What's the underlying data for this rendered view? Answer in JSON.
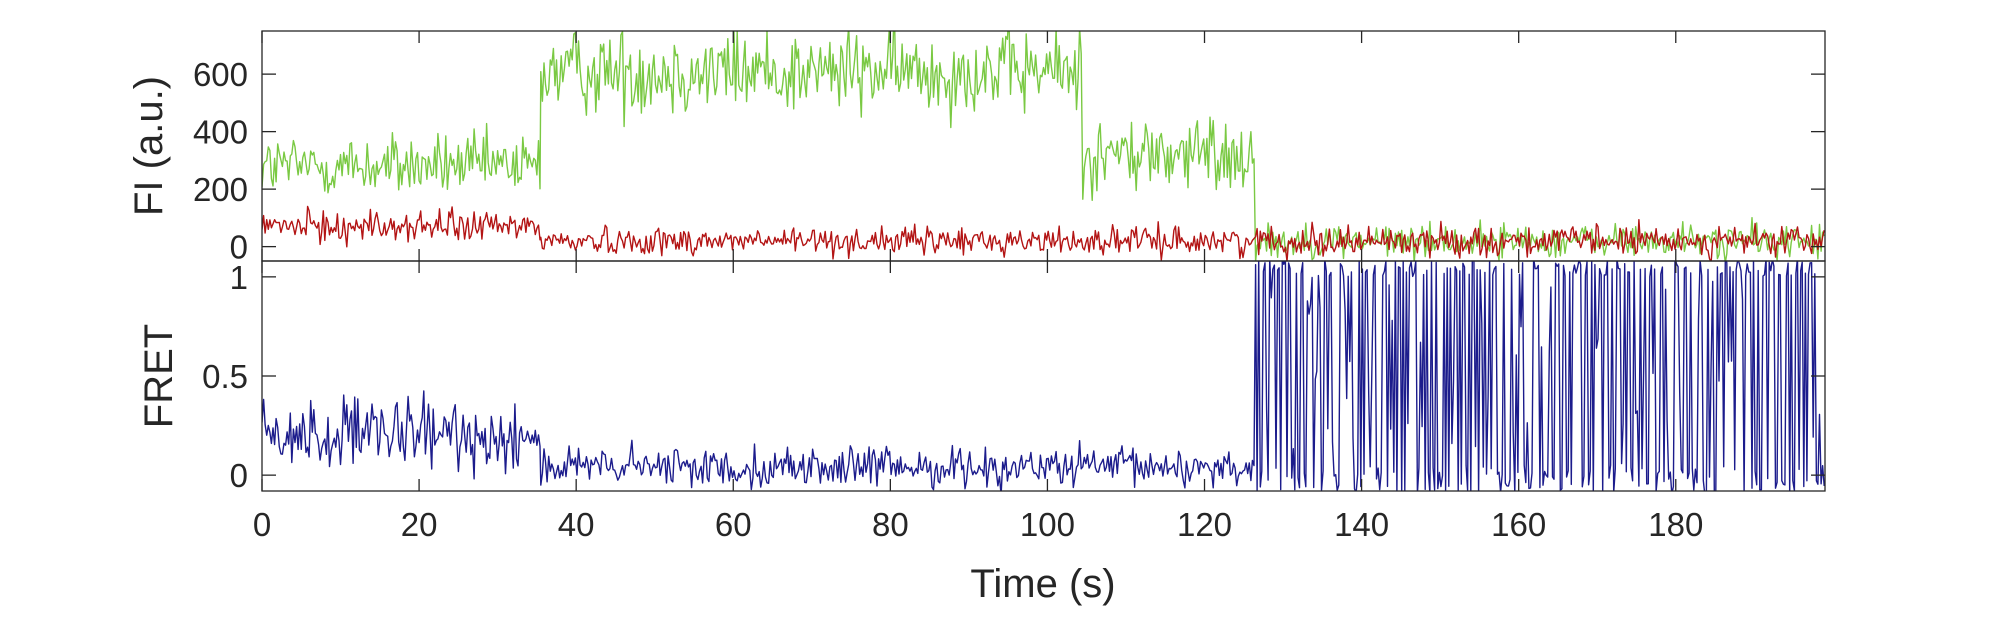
{
  "chart_data": [
    {
      "type": "line",
      "panel": "top",
      "ylabel": "FI (a.u.)",
      "xlim": [
        0,
        199
      ],
      "ylim": [
        -50,
        750
      ],
      "yticks": [
        0,
        200,
        400,
        600
      ],
      "grid": false,
      "legend": "none",
      "series": [
        {
          "color": "#7ac943",
          "segments": [
            {
              "x": [
                0,
                35.5
              ],
              "level": 280,
              "noise": 55
            },
            {
              "x": [
                35.5,
                104.5
              ],
              "level": 610,
              "noise": 75
            },
            {
              "x": [
                104.5,
                126.5
              ],
              "level": 320,
              "noise": 70
            },
            {
              "x": [
                126.5,
                199
              ],
              "level": 20,
              "noise": 30
            }
          ]
        },
        {
          "color": "#b31414",
          "segments": [
            {
              "x": [
                0,
                35.5
              ],
              "level": 70,
              "noise": 28
            },
            {
              "x": [
                35.5,
                126.5
              ],
              "level": 20,
              "noise": 24
            },
            {
              "x": [
                126.5,
                199
              ],
              "level": 20,
              "noise": 26
            }
          ]
        }
      ]
    },
    {
      "type": "line",
      "panel": "bottom",
      "ylabel": "FRET",
      "xlabel": "Time (s)",
      "xlim": [
        0,
        199
      ],
      "ylim": [
        -0.08,
        1.08
      ],
      "yticks": [
        0,
        0.5,
        1
      ],
      "xticks": [
        0,
        20,
        40,
        60,
        80,
        100,
        120,
        140,
        160,
        180
      ],
      "grid": false,
      "legend": "none",
      "series": [
        {
          "color": "#1c1c8c",
          "segments": [
            {
              "x": [
                0,
                35.5
              ],
              "level": 0.2,
              "noise": 0.09
            },
            {
              "x": [
                35.5,
                126.5
              ],
              "level": 0.04,
              "noise": 0.05
            },
            {
              "x": [
                126.5,
                199
              ],
              "level": "random 0-1",
              "noise": 0.5
            }
          ]
        }
      ]
    }
  ]
}
